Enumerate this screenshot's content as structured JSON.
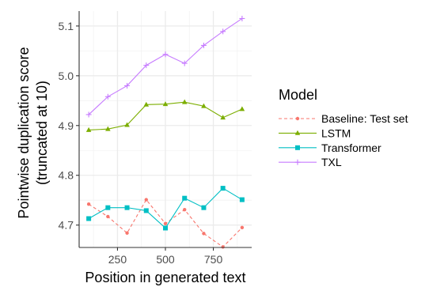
{
  "chart_data": {
    "type": "line",
    "xlabel": "Position in generated text",
    "ylabel_lines": [
      "Pointwise duplication score",
      "(truncated at 10)"
    ],
    "xlim": [
      50,
      950
    ],
    "ylim": [
      4.655,
      5.13
    ],
    "x_ticks": [
      250,
      500,
      750
    ],
    "y_ticks": [
      4.7,
      4.8,
      4.9,
      5.0,
      5.1
    ],
    "y_tick_labels": [
      "4.7",
      "4.8",
      "4.9",
      "5.0",
      "5.1"
    ],
    "grid": true,
    "legend_position": "right",
    "legend_title": "Model",
    "series": [
      {
        "name": "Baseline: Test set",
        "color": "#F8766D",
        "dash": "dashed",
        "marker": "circle",
        "x": [
          100,
          200,
          300,
          400,
          500,
          600,
          700,
          800,
          900
        ],
        "y": [
          4.742,
          4.717,
          4.684,
          4.751,
          4.703,
          4.731,
          4.683,
          4.656,
          4.695
        ]
      },
      {
        "name": "LSTM",
        "color": "#7CAE00",
        "dash": "solid",
        "marker": "triangle",
        "x": [
          100,
          200,
          300,
          400,
          500,
          600,
          700,
          800,
          900
        ],
        "y": [
          4.891,
          4.893,
          4.901,
          4.942,
          4.943,
          4.947,
          4.939,
          4.916,
          4.933
        ]
      },
      {
        "name": "Transformer",
        "color": "#00BFC4",
        "dash": "solid",
        "marker": "square",
        "x": [
          100,
          200,
          300,
          400,
          500,
          600,
          700,
          800,
          900
        ],
        "y": [
          4.713,
          4.735,
          4.735,
          4.729,
          4.694,
          4.754,
          4.735,
          4.774,
          4.751
        ]
      },
      {
        "name": "TXL",
        "color": "#C77CFF",
        "dash": "solid",
        "marker": "plus",
        "x": [
          100,
          200,
          300,
          400,
          500,
          600,
          700,
          800,
          900
        ],
        "y": [
          4.922,
          4.958,
          4.98,
          5.021,
          5.043,
          5.025,
          5.061,
          5.089,
          5.115
        ]
      }
    ]
  }
}
